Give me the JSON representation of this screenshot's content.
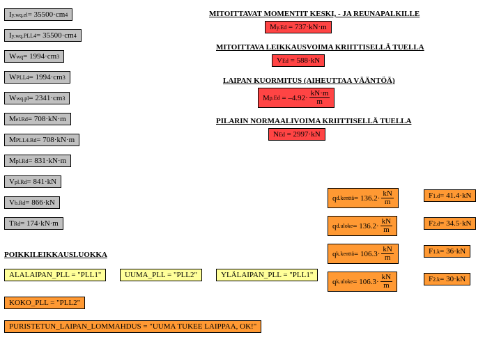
{
  "left_params": [
    {
      "sym": "I",
      "sub": "y.wq.el",
      "eq": "= 35500·cm",
      "sup": "4"
    },
    {
      "sym": "I",
      "sub": "y.wq.PLL4",
      "eq": "= 35500·cm",
      "sup": "4"
    },
    {
      "sym": "W",
      "sub": "wq",
      "eq": "= 1994·cm",
      "sup": "3"
    },
    {
      "sym": "W",
      "sub": "PLL4",
      "eq": "= 1994·cm",
      "sup": "3"
    },
    {
      "sym": "W",
      "sub": "wq.pl",
      "eq": "= 2341·cm",
      "sup": "3"
    },
    {
      "sym": "M",
      "sub": "el.Rd",
      "eq": "= 708·kN·m",
      "sup": ""
    },
    {
      "sym": "M",
      "sub": "PLL4.Rd",
      "eq": "= 708·kN·m",
      "sup": ""
    },
    {
      "sym": "M",
      "sub": "pl.Rd",
      "eq": "= 831·kN·m",
      "sup": ""
    },
    {
      "sym": "V",
      "sub": "pl.Rd",
      "eq": "= 841·kN",
      "sup": ""
    },
    {
      "sym": "V",
      "sub": "b.Rd",
      "eq": "= 866·kN",
      "sup": ""
    },
    {
      "sym": "T",
      "sub": "Rd",
      "eq": "= 174·kN·m",
      "sup": ""
    }
  ],
  "headings": {
    "h1": "MITOITTAVAT MOMENTIT KESKI, - JA REUNAPALKILLE",
    "h2": "MITOITTAVA LEIKKAUSVOIMA KRIITTISELLÄ TUELLA",
    "h3": "LAIPAN KUORMITUS (AIHEUTTAA VÄÄNTÖÄ)",
    "h4": "PILARIN NORMAALIVOIMA KRIITTISELLÄ TUELLA",
    "h5": "POIKKILEIKKAUSLUOKKA"
  },
  "results": {
    "myed": {
      "sym": "M",
      "sub": "y.Ed",
      "val": "= 737·kN·m"
    },
    "ved": {
      "sym": "V",
      "sub": "Ed",
      "val": "= 588·kN"
    },
    "mped": {
      "sym": "M",
      "sub": "p.Ed",
      "val": "= –4.92·",
      "frac_top": "kN·m",
      "frac_bot": "m"
    },
    "ned": {
      "sym": "N",
      "sub": "Ed",
      "val": "= 2997·kN"
    }
  },
  "loads": [
    {
      "sym": "q",
      "sub": "d.kenttä",
      "val": "= 136.2·",
      "frac_top": "kN",
      "frac_bot": "m"
    },
    {
      "sym": "q",
      "sub": "d.uloke",
      "val": "= 136.2·",
      "frac_top": "kN",
      "frac_bot": "m"
    },
    {
      "sym": "q",
      "sub": "k.kenttä",
      "val": "= 106.3·",
      "frac_top": "kN",
      "frac_bot": "m"
    },
    {
      "sym": "q",
      "sub": "k.uloke",
      "val": "= 106.3·",
      "frac_top": "kN",
      "frac_bot": "m"
    }
  ],
  "forces": [
    {
      "sym": "F",
      "sub": "1.d",
      "val": "= 41.4·kN"
    },
    {
      "sym": "F",
      "sub": "2.d",
      "val": "= 34.5·kN"
    },
    {
      "sym": "F",
      "sub": "1.k",
      "val": "= 36·kN"
    },
    {
      "sym": "F",
      "sub": "2.k",
      "val": "= 30·kN"
    }
  ],
  "classes": {
    "c1": "ALALAIPAN_PLL = \"PLL1\"",
    "c2": "UUMA_PLL = \"PLL2\"",
    "c3": "YLÄLAIPAN_PLL = \"PLL1\"",
    "c4": "KOKO_PLL = \"PLL2\"",
    "c5": "PURISTETUN_LAIPAN_LOMMAHDUS = \"UUMA TUKEE LAIPPAA, OK!\""
  }
}
